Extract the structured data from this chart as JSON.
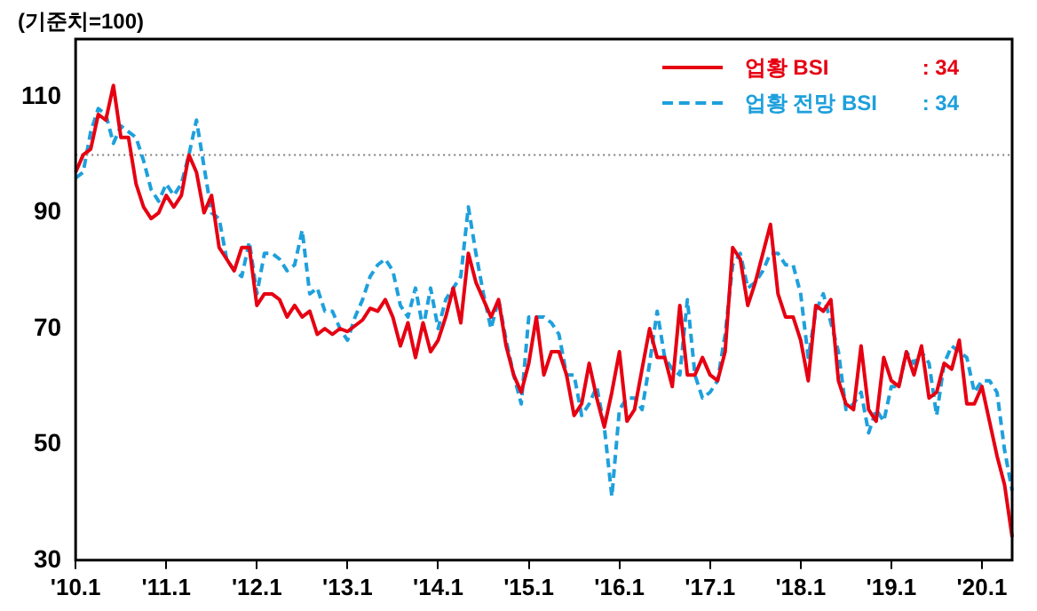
{
  "chart_data": {
    "type": "line",
    "ylabel": "(기준치=100)",
    "categories": [
      "'10.1",
      null,
      null,
      null,
      null,
      null,
      null,
      null,
      null,
      null,
      null,
      null,
      "'11.1",
      null,
      null,
      null,
      null,
      null,
      null,
      null,
      null,
      null,
      null,
      null,
      "'12.1",
      null,
      null,
      null,
      null,
      null,
      null,
      null,
      null,
      null,
      null,
      null,
      "'13.1",
      null,
      null,
      null,
      null,
      null,
      null,
      null,
      null,
      null,
      null,
      null,
      "'14.1",
      null,
      null,
      null,
      null,
      null,
      null,
      null,
      null,
      null,
      null,
      null,
      "'15.1",
      null,
      null,
      null,
      null,
      null,
      null,
      null,
      null,
      null,
      null,
      null,
      "'16.1",
      null,
      null,
      null,
      null,
      null,
      null,
      null,
      null,
      null,
      null,
      null,
      "'17.1",
      null,
      null,
      null,
      null,
      null,
      null,
      null,
      null,
      null,
      null,
      null,
      "'18.1",
      null,
      null,
      null,
      null,
      null,
      null,
      null,
      null,
      null,
      null,
      null,
      "'19.1",
      null,
      null,
      null,
      null,
      null,
      null,
      null,
      null,
      null,
      null,
      null,
      "'20.1",
      null,
      null,
      null,
      null
    ],
    "series": [
      {
        "name": "업황 BSI",
        "color": "#e60012",
        "line_style": "solid",
        "values": [
          97,
          100,
          101,
          107,
          106,
          112,
          103,
          103,
          95,
          91,
          89,
          90,
          93,
          91,
          93,
          100,
          97,
          90,
          93,
          84,
          82,
          80,
          84,
          84,
          74,
          76,
          76,
          75,
          72,
          74,
          72,
          73,
          69,
          70,
          69,
          70,
          69.5,
          70.5,
          71.5,
          73.5,
          73,
          75,
          72,
          67,
          71,
          65,
          71,
          66,
          68,
          72,
          77,
          71,
          83,
          78,
          75,
          72,
          75,
          67,
          62,
          59,
          64,
          72,
          62,
          66,
          66,
          62,
          55,
          57,
          64,
          58,
          53,
          59,
          66,
          54,
          56,
          63,
          70,
          65,
          65,
          60,
          74,
          62,
          62,
          65,
          62,
          61,
          66,
          84,
          82,
          74,
          78,
          83,
          88,
          76,
          72,
          72,
          68,
          61,
          74,
          73,
          75,
          61,
          57,
          56,
          67,
          56,
          54,
          65,
          61,
          60,
          66,
          62,
          67,
          58,
          59,
          64,
          63,
          68,
          57,
          57,
          60,
          54,
          48,
          43,
          34
        ]
      },
      {
        "name": "업황 전망 BSI",
        "color": "#1ea0dc",
        "line_style": "dashed",
        "values": [
          96,
          97,
          104,
          108,
          107,
          102,
          105,
          104,
          103,
          99,
          94,
          92,
          95,
          93,
          95,
          100,
          106,
          98,
          90,
          89,
          82,
          80,
          79,
          85,
          76,
          83,
          83,
          82,
          80,
          81,
          87,
          76,
          77,
          73,
          73,
          70,
          68,
          72,
          75,
          79,
          81,
          82,
          80,
          74,
          72,
          77,
          70,
          77,
          70,
          75,
          77,
          79,
          91,
          83,
          76,
          70,
          75,
          68,
          62,
          57,
          72,
          72,
          72,
          71,
          69,
          62,
          62,
          55,
          57,
          60,
          53,
          41,
          56,
          58,
          58,
          56,
          64,
          73,
          65,
          63,
          62,
          75,
          62,
          58,
          59,
          61,
          69,
          81,
          83,
          77,
          78,
          80,
          83,
          83,
          81,
          81,
          76,
          65,
          73,
          76,
          71,
          66,
          56,
          57,
          59,
          52,
          56,
          54,
          60,
          60,
          66,
          64,
          66,
          64,
          55,
          64,
          67,
          66,
          65,
          59,
          61,
          61,
          59,
          49,
          42
        ]
      }
    ],
    "ylim": [
      30,
      120
    ],
    "yticks": [
      30,
      50,
      70,
      90,
      110
    ],
    "ref_lines": [
      {
        "axis": "y",
        "value": 100,
        "color": "#808080",
        "line_style": "dotted"
      }
    ],
    "annotations": [
      ": 34",
      ": 34"
    ],
    "legend": "top right",
    "grid": false,
    "marker": "none"
  }
}
